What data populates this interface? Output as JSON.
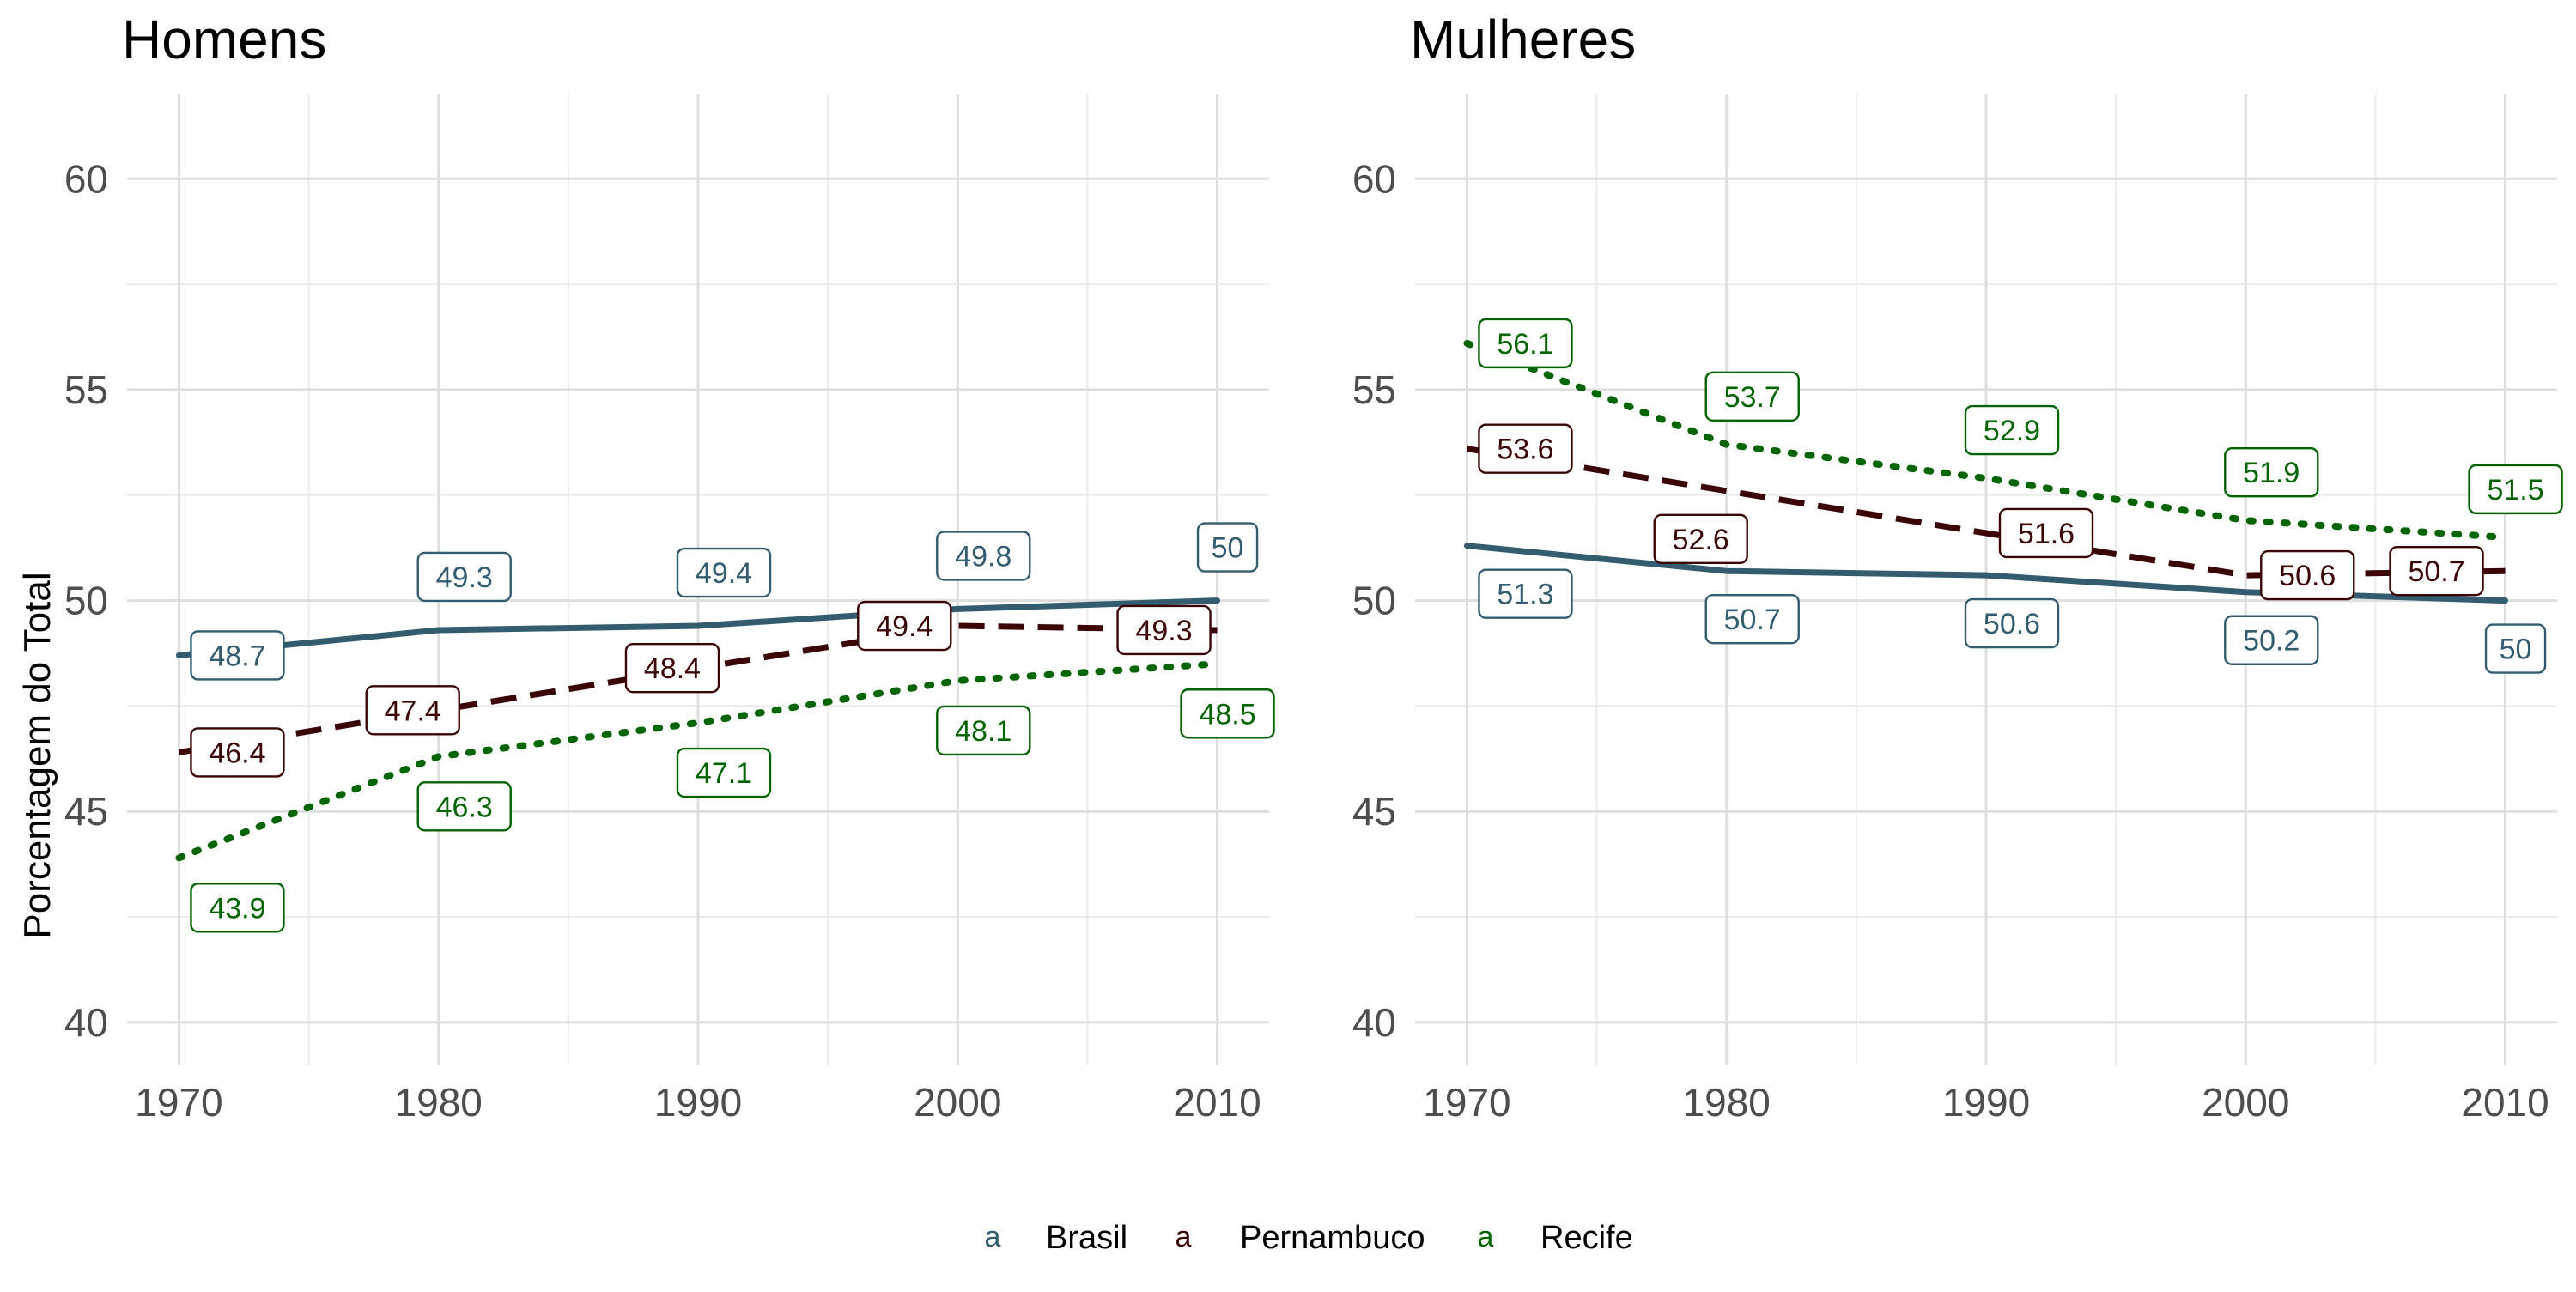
{
  "chart_data": {
    "type": "line",
    "ylabel": "Porcentagem do Total",
    "xlabel": "",
    "xlim": [
      1968,
      2012
    ],
    "ylim": [
      39,
      62
    ],
    "x_ticks": [
      1970,
      1980,
      1990,
      2000,
      2010
    ],
    "y_ticks": [
      40,
      45,
      50,
      55,
      60
    ],
    "grid": true,
    "legend_position": "bottom",
    "legend": [
      {
        "name": "Brasil",
        "key": "a",
        "color": "#335C6E",
        "dash": "solid"
      },
      {
        "name": "Pernambuco",
        "key": "a",
        "color": "#3B0507",
        "dash": "dashed"
      },
      {
        "name": "Recife",
        "key": "a",
        "color": "#006400",
        "dash": "dotted"
      }
    ],
    "panels": [
      {
        "title": "Homens",
        "x": [
          1970,
          1980,
          1990,
          2000,
          2010
        ],
        "series": [
          {
            "name": "Brasil",
            "values": [
              48.7,
              49.3,
              49.4,
              49.8,
              50
            ],
            "labels": [
              "48.7",
              "49.3",
              "49.4",
              "49.8",
              "50"
            ]
          },
          {
            "name": "Pernambuco",
            "values": [
              46.4,
              47.4,
              48.4,
              49.4,
              49.3
            ],
            "labels": [
              "46.4",
              "47.4",
              "48.4",
              "49.4",
              "49.3"
            ]
          },
          {
            "name": "Recife",
            "values": [
              43.9,
              46.3,
              47.1,
              48.1,
              48.5
            ],
            "labels": [
              "43.9",
              "46.3",
              "47.1",
              "48.1",
              "48.5"
            ]
          }
        ]
      },
      {
        "title": "Mulheres",
        "x": [
          1970,
          1980,
          1990,
          2000,
          2010
        ],
        "series": [
          {
            "name": "Brasil",
            "values": [
              51.3,
              50.7,
              50.6,
              50.2,
              50
            ],
            "labels": [
              "51.3",
              "50.7",
              "50.6",
              "50.2",
              "50"
            ]
          },
          {
            "name": "Pernambuco",
            "values": [
              53.6,
              52.6,
              51.6,
              50.6,
              50.7
            ],
            "labels": [
              "53.6",
              "52.6",
              "51.6",
              "50.6",
              "50.7"
            ]
          },
          {
            "name": "Recife",
            "values": [
              56.1,
              53.7,
              52.9,
              51.9,
              51.5
            ],
            "labels": [
              "56.1",
              "53.7",
              "52.9",
              "51.9",
              "51.5"
            ]
          }
        ]
      }
    ]
  }
}
